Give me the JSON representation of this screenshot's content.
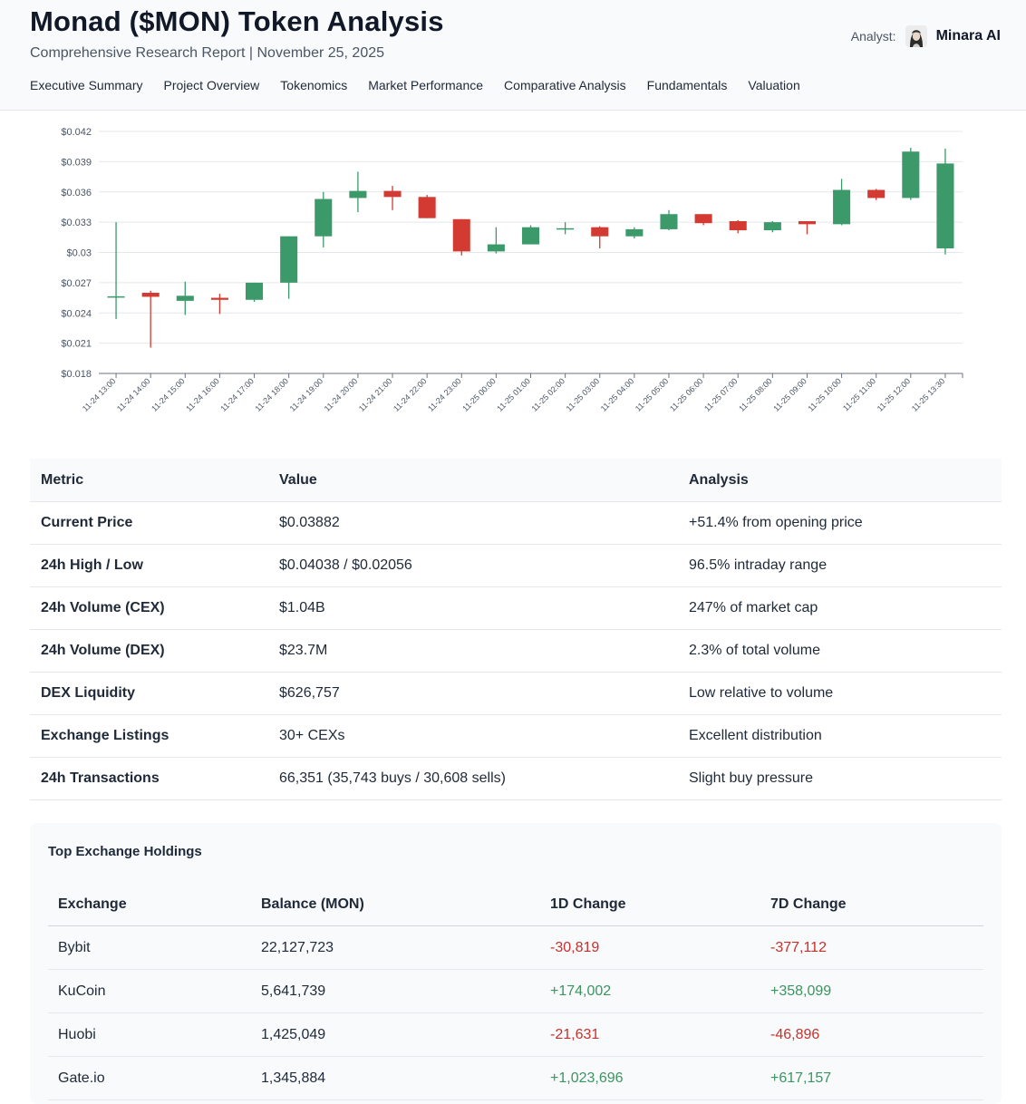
{
  "header": {
    "title": "Monad ($MON) Token Analysis",
    "subtitle": "Comprehensive Research Report | November 25, 2025",
    "analyst_label": "Analyst:",
    "analyst_name": "Minara AI"
  },
  "nav": [
    "Executive Summary",
    "Project Overview",
    "Tokenomics",
    "Market Performance",
    "Comparative Analysis",
    "Fundamentals",
    "Valuation"
  ],
  "colors": {
    "up": "#3c9a6a",
    "down": "#d23a32",
    "grid": "#e5e7eb"
  },
  "chart_data": {
    "type": "candlestick",
    "title": "",
    "xlabel": "",
    "ylabel": "",
    "ylim": [
      0.018,
      0.042
    ],
    "yticks": [
      "$0.042",
      "$0.039",
      "$0.036",
      "$0.033",
      "$0.03",
      "$0.027",
      "$0.024",
      "$0.021",
      "$0.018"
    ],
    "ytick_values": [
      0.042,
      0.039,
      0.036,
      0.033,
      0.03,
      0.027,
      0.024,
      0.021,
      0.018
    ],
    "categories": [
      "11-24 13:00",
      "11-24 14:00",
      "11-24 15:00",
      "11-24 16:00",
      "11-24 17:00",
      "11-24 18:00",
      "11-24 19:00",
      "11-24 20:00",
      "11-24 21:00",
      "11-24 22:00",
      "11-24 23:00",
      "11-25 00:00",
      "11-25 01:00",
      "11-25 02:00",
      "11-25 03:00",
      "11-25 04:00",
      "11-25 05:00",
      "11-25 06:00",
      "11-25 07:00",
      "11-25 08:00",
      "11-25 09:00",
      "11-25 10:00",
      "11-25 11:00",
      "11-25 12:00",
      "11-25 13:30"
    ],
    "candles": [
      {
        "o": 0.02565,
        "h": 0.033,
        "l": 0.0234,
        "c": 0.02565
      },
      {
        "o": 0.026,
        "h": 0.0262,
        "l": 0.02056,
        "c": 0.0256
      },
      {
        "o": 0.0252,
        "h": 0.0271,
        "l": 0.0238,
        "c": 0.0257
      },
      {
        "o": 0.0255,
        "h": 0.0259,
        "l": 0.0239,
        "c": 0.0253
      },
      {
        "o": 0.0253,
        "h": 0.027,
        "l": 0.0251,
        "c": 0.027
      },
      {
        "o": 0.027,
        "h": 0.0316,
        "l": 0.0254,
        "c": 0.0316
      },
      {
        "o": 0.0316,
        "h": 0.036,
        "l": 0.0305,
        "c": 0.0353
      },
      {
        "o": 0.0354,
        "h": 0.038,
        "l": 0.034,
        "c": 0.0361
      },
      {
        "o": 0.0361,
        "h": 0.0366,
        "l": 0.0342,
        "c": 0.0355
      },
      {
        "o": 0.0355,
        "h": 0.0357,
        "l": 0.0334,
        "c": 0.0334
      },
      {
        "o": 0.0333,
        "h": 0.0333,
        "l": 0.0297,
        "c": 0.0301
      },
      {
        "o": 0.0301,
        "h": 0.0325,
        "l": 0.0299,
        "c": 0.0308
      },
      {
        "o": 0.0308,
        "h": 0.0327,
        "l": 0.0308,
        "c": 0.0325
      },
      {
        "o": 0.0324,
        "h": 0.033,
        "l": 0.0318,
        "c": 0.0324
      },
      {
        "o": 0.0325,
        "h": 0.0326,
        "l": 0.0304,
        "c": 0.0316
      },
      {
        "o": 0.0316,
        "h": 0.0325,
        "l": 0.0314,
        "c": 0.0323
      },
      {
        "o": 0.0323,
        "h": 0.0342,
        "l": 0.0322,
        "c": 0.0338
      },
      {
        "o": 0.0338,
        "h": 0.0338,
        "l": 0.0327,
        "c": 0.0329
      },
      {
        "o": 0.0331,
        "h": 0.0332,
        "l": 0.0319,
        "c": 0.0322
      },
      {
        "o": 0.0322,
        "h": 0.0331,
        "l": 0.032,
        "c": 0.033
      },
      {
        "o": 0.0331,
        "h": 0.0331,
        "l": 0.0318,
        "c": 0.0328
      },
      {
        "o": 0.0328,
        "h": 0.0373,
        "l": 0.0327,
        "c": 0.0362
      },
      {
        "o": 0.0362,
        "h": 0.0363,
        "l": 0.0352,
        "c": 0.0354
      },
      {
        "o": 0.0354,
        "h": 0.04038,
        "l": 0.0352,
        "c": 0.04
      },
      {
        "o": 0.0304,
        "h": 0.0403,
        "l": 0.0298,
        "c": 0.03882
      }
    ]
  },
  "metrics": {
    "headers": [
      "Metric",
      "Value",
      "Analysis"
    ],
    "rows": [
      [
        "Current Price",
        "$0.03882",
        "+51.4% from opening price"
      ],
      [
        "24h High / Low",
        "$0.04038 / $0.02056",
        "96.5% intraday range"
      ],
      [
        "24h Volume (CEX)",
        "$1.04B",
        "247% of market cap"
      ],
      [
        "24h Volume (DEX)",
        "$23.7M",
        "2.3% of total volume"
      ],
      [
        "DEX Liquidity",
        "$626,757",
        "Low relative to volume"
      ],
      [
        "Exchange Listings",
        "30+ CEXs",
        "Excellent distribution"
      ],
      [
        "24h Transactions",
        "66,351 (35,743 buys / 30,608 sells)",
        "Slight buy pressure"
      ]
    ]
  },
  "holdings": {
    "title": "Top Exchange Holdings",
    "headers": [
      "Exchange",
      "Balance (MON)",
      "1D Change",
      "7D Change"
    ],
    "rows": [
      [
        "Bybit",
        "22,127,723",
        "-30,819",
        "-377,112"
      ],
      [
        "KuCoin",
        "5,641,739",
        "+174,002",
        "+358,099"
      ],
      [
        "Huobi",
        "1,425,049",
        "-21,631",
        "-46,896"
      ],
      [
        "Gate.io",
        "1,345,884",
        "+1,023,696",
        "+617,157"
      ]
    ]
  }
}
